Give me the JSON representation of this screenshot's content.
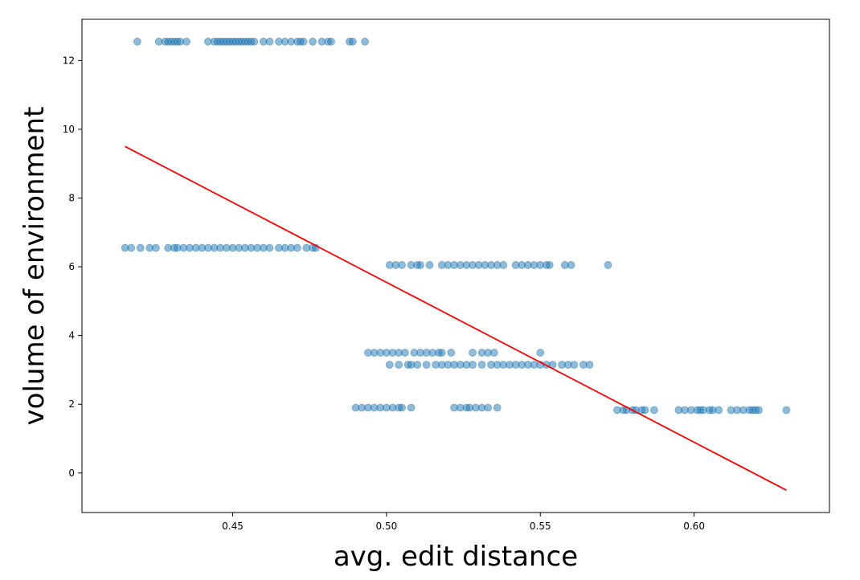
{
  "chart_data": {
    "type": "scatter",
    "title": "",
    "xlabel": "avg. edit distance",
    "ylabel": "volume of environment",
    "xlim": [
      0.401,
      0.644
    ],
    "ylim": [
      -1.15,
      13.2
    ],
    "xticks": [
      0.45,
      0.5,
      0.55,
      0.6
    ],
    "xtick_labels": [
      "0.45",
      "0.50",
      "0.55",
      "0.60"
    ],
    "yticks": [
      0,
      2,
      4,
      6,
      8,
      10,
      12
    ],
    "ytick_labels": [
      "0",
      "2",
      "4",
      "6",
      "8",
      "10",
      "12"
    ],
    "grid": false,
    "legend": "none",
    "point_color": "#1f77b4",
    "point_alpha": 0.5,
    "fit_color": "#ff0000",
    "fit_line": {
      "x": [
        0.415,
        0.63
      ],
      "y": [
        9.5,
        -0.5
      ]
    },
    "series": [
      {
        "points": [
          [
            0.419,
            12.55
          ],
          [
            0.426,
            12.55
          ],
          [
            0.428,
            12.55
          ],
          [
            0.429,
            12.55
          ],
          [
            0.43,
            12.55
          ],
          [
            0.431,
            12.55
          ],
          [
            0.432,
            12.55
          ],
          [
            0.433,
            12.55
          ],
          [
            0.435,
            12.55
          ],
          [
            0.442,
            12.55
          ],
          [
            0.444,
            12.55
          ],
          [
            0.445,
            12.55
          ],
          [
            0.446,
            12.55
          ],
          [
            0.447,
            12.55
          ],
          [
            0.448,
            12.55
          ],
          [
            0.449,
            12.55
          ],
          [
            0.45,
            12.55
          ],
          [
            0.451,
            12.55
          ],
          [
            0.452,
            12.55
          ],
          [
            0.453,
            12.55
          ],
          [
            0.454,
            12.55
          ],
          [
            0.455,
            12.55
          ],
          [
            0.456,
            12.55
          ],
          [
            0.457,
            12.55
          ],
          [
            0.46,
            12.55
          ],
          [
            0.462,
            12.55
          ],
          [
            0.465,
            12.55
          ],
          [
            0.467,
            12.55
          ],
          [
            0.469,
            12.55
          ],
          [
            0.471,
            12.55
          ],
          [
            0.472,
            12.55
          ],
          [
            0.473,
            12.55
          ],
          [
            0.476,
            12.55
          ],
          [
            0.479,
            12.55
          ],
          [
            0.481,
            12.55
          ],
          [
            0.482,
            12.55
          ],
          [
            0.488,
            12.55
          ],
          [
            0.489,
            12.55
          ],
          [
            0.493,
            12.55
          ],
          [
            0.415,
            6.55
          ],
          [
            0.417,
            6.55
          ],
          [
            0.42,
            6.55
          ],
          [
            0.423,
            6.55
          ],
          [
            0.425,
            6.55
          ],
          [
            0.429,
            6.55
          ],
          [
            0.431,
            6.55
          ],
          [
            0.432,
            6.55
          ],
          [
            0.434,
            6.55
          ],
          [
            0.436,
            6.55
          ],
          [
            0.438,
            6.55
          ],
          [
            0.44,
            6.55
          ],
          [
            0.442,
            6.55
          ],
          [
            0.444,
            6.55
          ],
          [
            0.446,
            6.55
          ],
          [
            0.448,
            6.55
          ],
          [
            0.45,
            6.55
          ],
          [
            0.452,
            6.55
          ],
          [
            0.454,
            6.55
          ],
          [
            0.456,
            6.55
          ],
          [
            0.458,
            6.55
          ],
          [
            0.46,
            6.55
          ],
          [
            0.462,
            6.55
          ],
          [
            0.465,
            6.55
          ],
          [
            0.467,
            6.55
          ],
          [
            0.469,
            6.55
          ],
          [
            0.471,
            6.55
          ],
          [
            0.474,
            6.55
          ],
          [
            0.476,
            6.55
          ],
          [
            0.477,
            6.55
          ],
          [
            0.501,
            6.05
          ],
          [
            0.503,
            6.05
          ],
          [
            0.505,
            6.05
          ],
          [
            0.508,
            6.05
          ],
          [
            0.51,
            6.05
          ],
          [
            0.511,
            6.05
          ],
          [
            0.514,
            6.05
          ],
          [
            0.518,
            6.05
          ],
          [
            0.52,
            6.05
          ],
          [
            0.522,
            6.05
          ],
          [
            0.524,
            6.05
          ],
          [
            0.526,
            6.05
          ],
          [
            0.528,
            6.05
          ],
          [
            0.53,
            6.05
          ],
          [
            0.532,
            6.05
          ],
          [
            0.534,
            6.05
          ],
          [
            0.536,
            6.05
          ],
          [
            0.538,
            6.05
          ],
          [
            0.542,
            6.05
          ],
          [
            0.544,
            6.05
          ],
          [
            0.546,
            6.05
          ],
          [
            0.548,
            6.05
          ],
          [
            0.55,
            6.05
          ],
          [
            0.552,
            6.05
          ],
          [
            0.553,
            6.05
          ],
          [
            0.558,
            6.05
          ],
          [
            0.56,
            6.05
          ],
          [
            0.572,
            6.05
          ],
          [
            0.494,
            3.5
          ],
          [
            0.496,
            3.5
          ],
          [
            0.498,
            3.5
          ],
          [
            0.5,
            3.5
          ],
          [
            0.502,
            3.5
          ],
          [
            0.504,
            3.5
          ],
          [
            0.506,
            3.5
          ],
          [
            0.509,
            3.5
          ],
          [
            0.511,
            3.5
          ],
          [
            0.513,
            3.5
          ],
          [
            0.515,
            3.5
          ],
          [
            0.517,
            3.5
          ],
          [
            0.518,
            3.5
          ],
          [
            0.521,
            3.5
          ],
          [
            0.528,
            3.5
          ],
          [
            0.531,
            3.5
          ],
          [
            0.533,
            3.5
          ],
          [
            0.535,
            3.5
          ],
          [
            0.55,
            3.5
          ],
          [
            0.501,
            3.15
          ],
          [
            0.504,
            3.15
          ],
          [
            0.507,
            3.15
          ],
          [
            0.508,
            3.15
          ],
          [
            0.51,
            3.15
          ],
          [
            0.513,
            3.15
          ],
          [
            0.516,
            3.15
          ],
          [
            0.518,
            3.15
          ],
          [
            0.52,
            3.15
          ],
          [
            0.522,
            3.15
          ],
          [
            0.524,
            3.15
          ],
          [
            0.526,
            3.15
          ],
          [
            0.528,
            3.15
          ],
          [
            0.531,
            3.15
          ],
          [
            0.534,
            3.15
          ],
          [
            0.536,
            3.15
          ],
          [
            0.538,
            3.15
          ],
          [
            0.54,
            3.15
          ],
          [
            0.542,
            3.15
          ],
          [
            0.544,
            3.15
          ],
          [
            0.546,
            3.15
          ],
          [
            0.548,
            3.15
          ],
          [
            0.55,
            3.15
          ],
          [
            0.552,
            3.15
          ],
          [
            0.554,
            3.15
          ],
          [
            0.557,
            3.15
          ],
          [
            0.559,
            3.15
          ],
          [
            0.561,
            3.15
          ],
          [
            0.564,
            3.15
          ],
          [
            0.566,
            3.15
          ],
          [
            0.49,
            1.9
          ],
          [
            0.492,
            1.9
          ],
          [
            0.494,
            1.9
          ],
          [
            0.496,
            1.9
          ],
          [
            0.498,
            1.9
          ],
          [
            0.5,
            1.9
          ],
          [
            0.502,
            1.9
          ],
          [
            0.504,
            1.9
          ],
          [
            0.505,
            1.9
          ],
          [
            0.508,
            1.9
          ],
          [
            0.522,
            1.9
          ],
          [
            0.524,
            1.9
          ],
          [
            0.526,
            1.9
          ],
          [
            0.527,
            1.9
          ],
          [
            0.529,
            1.9
          ],
          [
            0.531,
            1.9
          ],
          [
            0.533,
            1.9
          ],
          [
            0.536,
            1.9
          ],
          [
            0.575,
            1.83
          ],
          [
            0.577,
            1.83
          ],
          [
            0.578,
            1.83
          ],
          [
            0.58,
            1.83
          ],
          [
            0.581,
            1.83
          ],
          [
            0.583,
            1.83
          ],
          [
            0.584,
            1.83
          ],
          [
            0.587,
            1.83
          ],
          [
            0.595,
            1.83
          ],
          [
            0.597,
            1.83
          ],
          [
            0.599,
            1.83
          ],
          [
            0.601,
            1.83
          ],
          [
            0.602,
            1.83
          ],
          [
            0.603,
            1.83
          ],
          [
            0.605,
            1.83
          ],
          [
            0.606,
            1.83
          ],
          [
            0.608,
            1.83
          ],
          [
            0.612,
            1.83
          ],
          [
            0.614,
            1.83
          ],
          [
            0.616,
            1.83
          ],
          [
            0.618,
            1.83
          ],
          [
            0.619,
            1.83
          ],
          [
            0.62,
            1.83
          ],
          [
            0.621,
            1.83
          ],
          [
            0.63,
            1.83
          ]
        ]
      }
    ]
  }
}
